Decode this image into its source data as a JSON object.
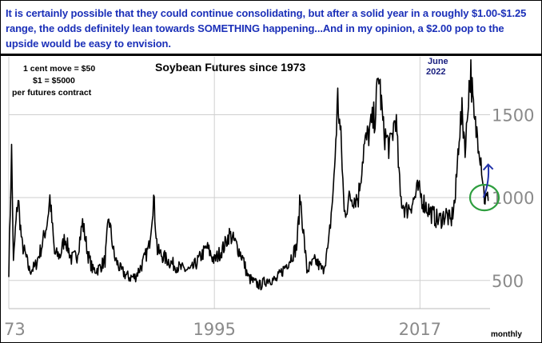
{
  "headline": "It is certainly possible that they could continue consolidating, but after a solid year in a roughly $1.00-$1.25 range, the odds definitely lean towards SOMETHING happening...And in my opinion, a $2.00 pop to the upside would be easy to envision.",
  "colors": {
    "headline": "#1a2fb8",
    "price_line": "#000000",
    "circle": "#2e9e3f",
    "arrow": "#2233aa",
    "grid": "#cfcfcf",
    "tick_text": "#8a8a8a"
  },
  "chart_data": {
    "type": "line",
    "title": "Soybean Futures since 1973",
    "notes": [
      "1 cent move = $50",
      "$1 = $5000",
      "per futures contract"
    ],
    "annotation_top": [
      "June",
      "2022"
    ],
    "frequency_label": "monthly",
    "x_tick_labels": [
      "73",
      "1995",
      "2017"
    ],
    "y_tick_labels": [
      "500",
      "1000",
      "1500"
    ],
    "xlim": [
      1973,
      2024.5
    ],
    "ylim": [
      330,
      1850
    ],
    "grid": true,
    "series": [
      {
        "x": [
          1973.0,
          1973.3,
          1973.5,
          1973.7,
          1974.0,
          1974.4,
          1974.8,
          1975.2,
          1975.8,
          1976.5,
          1977.1,
          1977.4,
          1977.9,
          1978.5,
          1979.0,
          1979.7,
          1980.3,
          1980.9,
          1981.5,
          1982.0,
          1982.6,
          1983.3,
          1983.7,
          1984.3,
          1985.0,
          1985.8,
          1986.5,
          1987.3,
          1988.0,
          1988.5,
          1988.9,
          1989.6,
          1990.5,
          1991.5,
          1992.5,
          1993.5,
          1994.2,
          1995.0,
          1996.0,
          1996.6,
          1997.3,
          1998.0,
          1998.6,
          1999.2,
          1999.9,
          2000.8,
          2001.6,
          2002.3,
          2003.0,
          2003.8,
          2004.2,
          2004.9,
          2005.8,
          2006.6,
          2007.2,
          2007.8,
          2008.2,
          2008.6,
          2008.9,
          2009.5,
          2010.4,
          2011.0,
          2011.6,
          2012.2,
          2012.6,
          2013.1,
          2013.8,
          2014.4,
          2014.9,
          2015.5,
          2016.3,
          2016.8,
          2017.5,
          2018.3,
          2019.0,
          2019.8,
          2020.3,
          2020.8,
          2021.2,
          2021.5,
          2021.9,
          2022.2,
          2022.45,
          2022.8,
          2023.3,
          2023.6,
          2023.9,
          2024.3
        ],
        "y": [
          560,
          1280,
          600,
          800,
          1000,
          720,
          650,
          560,
          580,
          700,
          850,
          1000,
          660,
          650,
          760,
          630,
          650,
          850,
          650,
          560,
          570,
          620,
          880,
          640,
          560,
          520,
          520,
          600,
          700,
          1000,
          680,
          640,
          600,
          570,
          560,
          640,
          700,
          620,
          700,
          780,
          720,
          640,
          520,
          490,
          470,
          510,
          500,
          560,
          620,
          700,
          1000,
          560,
          620,
          560,
          700,
          1100,
          1600,
          1300,
          900,
          1000,
          1000,
          1300,
          1400,
          1500,
          1750,
          1400,
          1300,
          1500,
          1000,
          920,
          980,
          1050,
          960,
          900,
          860,
          900,
          850,
          1000,
          1400,
          1500,
          1300,
          1650,
          1750,
          1450,
          1350,
          1200,
          1000,
          980
        ]
      }
    ],
    "annotations": [
      {
        "type": "circle",
        "x": 2023.9,
        "y": 1000
      },
      {
        "type": "arrow",
        "from": [
          2023.8,
          1000
        ],
        "to": [
          2024.3,
          1200
        ]
      }
    ]
  }
}
